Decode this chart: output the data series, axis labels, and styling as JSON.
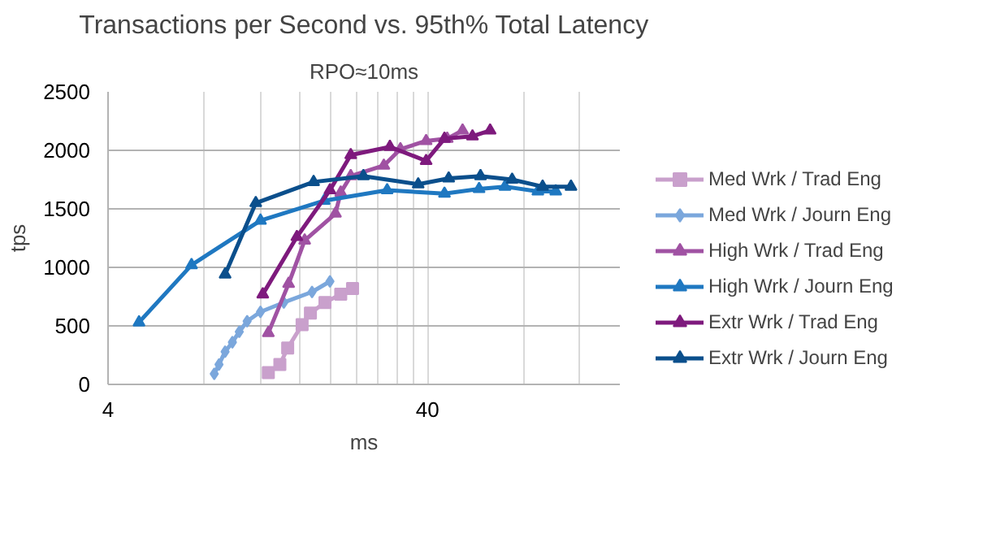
{
  "chart_data": {
    "type": "line",
    "title": "Transactions per Second vs. 95th% Total Latency",
    "subtitle": "RPO≈10ms",
    "xlabel": "ms",
    "ylabel": "tps",
    "log": "x",
    "grid": true,
    "legend": "right",
    "xlim": [
      4,
      160
    ],
    "xticks": [
      4,
      {
        "value": 8,
        "label": null
      },
      {
        "value": 12,
        "label": null
      },
      {
        "value": 16,
        "label": null
      },
      {
        "value": 20,
        "label": null
      },
      {
        "value": 24,
        "label": null
      },
      {
        "value": 28,
        "label": null
      },
      {
        "value": 32,
        "label": null
      },
      {
        "value": 36,
        "label": null
      },
      40,
      {
        "value": 80,
        "label": null
      },
      {
        "value": 120,
        "label": null
      }
    ],
    "ylim": [
      0,
      2500
    ],
    "yticks": [
      0,
      500,
      1000,
      1500,
      2000,
      2500
    ],
    "series": [
      {
        "name": "Med Wrk / Trad Eng",
        "color": "#c9a0cc",
        "marker": "square",
        "x": [
          12.7,
          13.8,
          14.6,
          16.2,
          17.2,
          19.1,
          21.4,
          23.3
        ],
        "values": [
          100,
          170,
          310,
          510,
          610,
          700,
          770,
          820
        ]
      },
      {
        "name": "Med Wrk / Journ Eng",
        "color": "#7ba7dc",
        "marker": "diamond",
        "x": [
          8.6,
          8.9,
          9.3,
          9.8,
          10.3,
          10.9,
          12.0,
          14.2,
          17.4,
          19.8
        ],
        "values": [
          90,
          170,
          280,
          360,
          450,
          540,
          620,
          700,
          790,
          880
        ]
      },
      {
        "name": "High Wrk / Trad Eng",
        "color": "#a052a3",
        "marker": "triangle",
        "x": [
          12.7,
          14.7,
          16.5,
          20.6,
          21.4,
          23.0,
          29.2,
          32.9,
          39.6,
          46.1,
          51.5
        ],
        "values": [
          440,
          860,
          1230,
          1460,
          1640,
          1780,
          1870,
          2010,
          2080,
          2100,
          2170
        ]
      },
      {
        "name": "High Wrk / Journ Eng",
        "color": "#1f78c1",
        "marker": "triangle",
        "x": [
          5.0,
          7.3,
          12.0,
          19.0,
          29.9,
          45.2,
          58.0,
          69.9,
          88.6,
          100.8
        ],
        "values": [
          530,
          1020,
          1400,
          1570,
          1660,
          1630,
          1670,
          1690,
          1650,
          1650
        ]
      },
      {
        "name": "Extr Wrk / Trad Eng",
        "color": "#7e1a7d",
        "marker": "triangle",
        "x": [
          12.2,
          15.6,
          19.8,
          23.0,
          30.5,
          39.6,
          45.2,
          55.3,
          62.8
        ],
        "values": [
          770,
          1260,
          1660,
          1960,
          2030,
          1910,
          2100,
          2120,
          2170
        ]
      },
      {
        "name": "Extr Wrk / Journ Eng",
        "color": "#0b4f8c",
        "marker": "triangle",
        "x": [
          9.3,
          11.6,
          17.6,
          25.2,
          37.4,
          46.6,
          58.6,
          73.6,
          91.7,
          112.5
        ],
        "values": [
          940,
          1550,
          1730,
          1780,
          1710,
          1760,
          1780,
          1750,
          1690,
          1690
        ]
      }
    ]
  }
}
